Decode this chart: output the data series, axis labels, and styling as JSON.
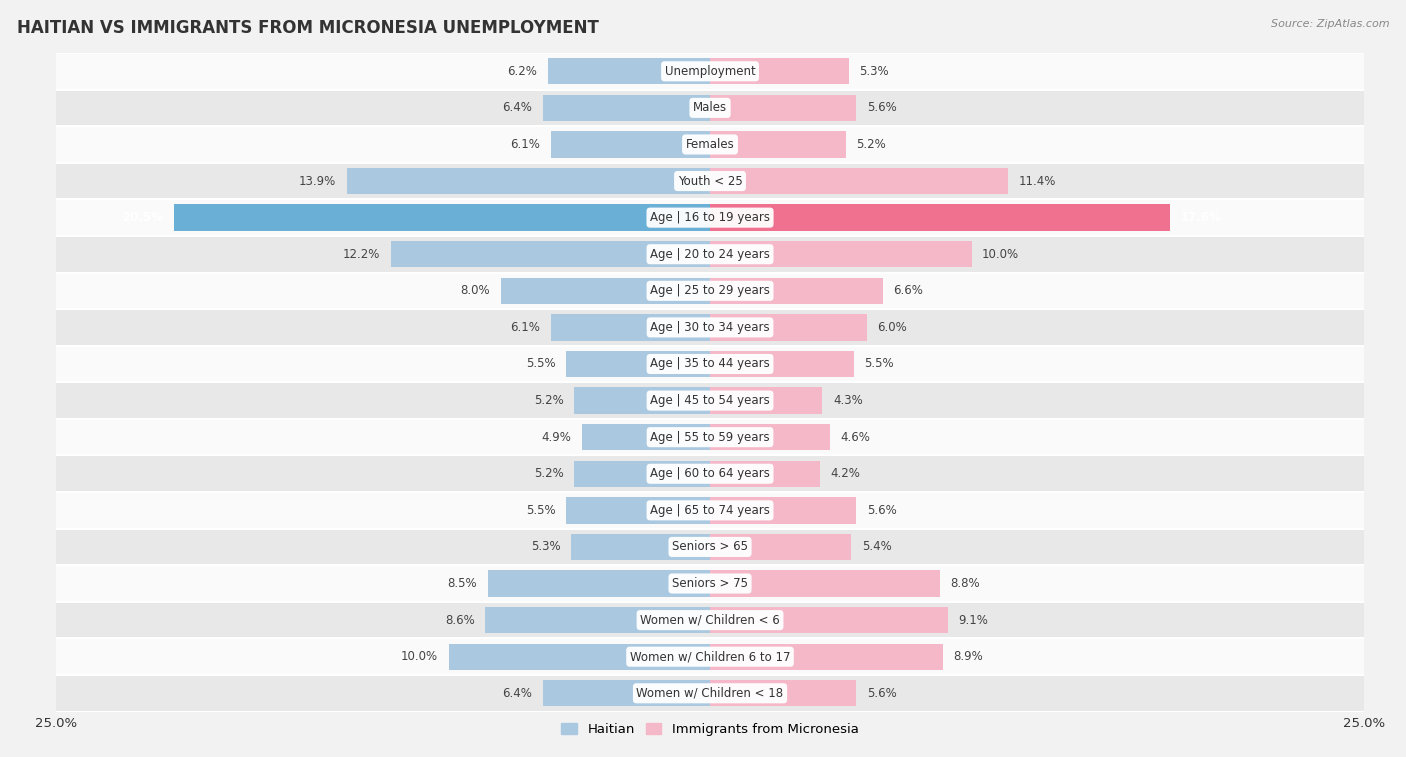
{
  "title": "HAITIAN VS IMMIGRANTS FROM MICRONESIA UNEMPLOYMENT",
  "source": "Source: ZipAtlas.com",
  "categories": [
    "Unemployment",
    "Males",
    "Females",
    "Youth < 25",
    "Age | 16 to 19 years",
    "Age | 20 to 24 years",
    "Age | 25 to 29 years",
    "Age | 30 to 34 years",
    "Age | 35 to 44 years",
    "Age | 45 to 54 years",
    "Age | 55 to 59 years",
    "Age | 60 to 64 years",
    "Age | 65 to 74 years",
    "Seniors > 65",
    "Seniors > 75",
    "Women w/ Children < 6",
    "Women w/ Children 6 to 17",
    "Women w/ Children < 18"
  ],
  "haitian": [
    6.2,
    6.4,
    6.1,
    13.9,
    20.5,
    12.2,
    8.0,
    6.1,
    5.5,
    5.2,
    4.9,
    5.2,
    5.5,
    5.3,
    8.5,
    8.6,
    10.0,
    6.4
  ],
  "micronesia": [
    5.3,
    5.6,
    5.2,
    11.4,
    17.6,
    10.0,
    6.6,
    6.0,
    5.5,
    4.3,
    4.6,
    4.2,
    5.6,
    5.4,
    8.8,
    9.1,
    8.9,
    5.6
  ],
  "haitian_color": "#aac9e0",
  "micronesia_color": "#f5b8c8",
  "highlight_haitian_color": "#6aafd6",
  "highlight_micronesia_color": "#f07090",
  "bar_height": 0.72,
  "xlim": 25.0,
  "background_color": "#f2f2f2",
  "row_bg_light": "#fafafa",
  "row_bg_dark": "#e8e8e8",
  "legend_haitian": "Haitian",
  "legend_micronesia": "Immigrants from Micronesia",
  "title_fontsize": 12,
  "label_fontsize": 8.5,
  "value_fontsize": 8.5
}
